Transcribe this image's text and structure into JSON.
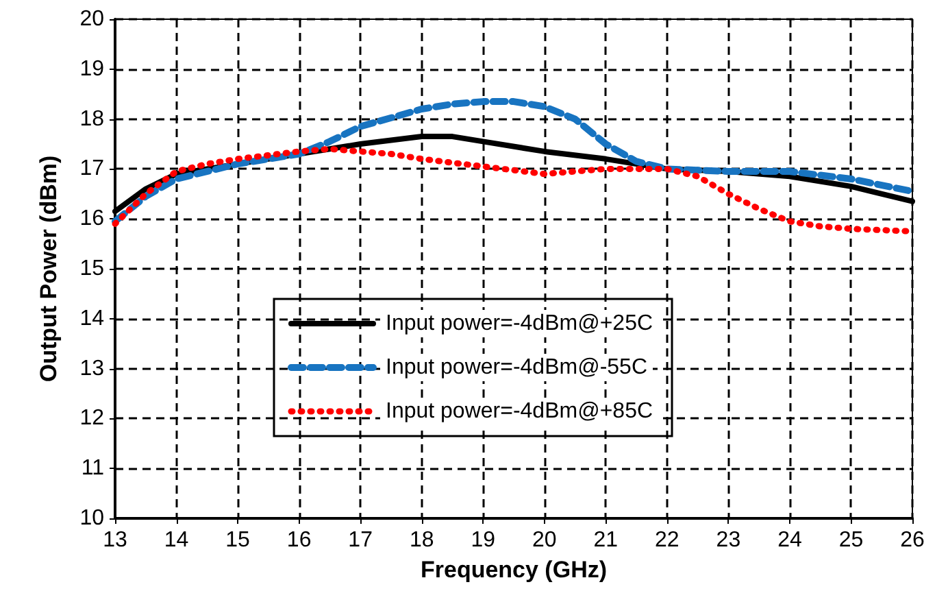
{
  "chart_data": {
    "type": "line",
    "xlabel": "Frequency (GHz)",
    "ylabel": "Output Power (dBm)",
    "xlim": [
      13,
      26
    ],
    "xticks": [
      13,
      14,
      15,
      16,
      17,
      18,
      19,
      20,
      21,
      22,
      23,
      24,
      25,
      26
    ],
    "ylim": [
      10,
      20
    ],
    "yticks": [
      10,
      11,
      12,
      13,
      14,
      15,
      16,
      17,
      18,
      19,
      20
    ],
    "grid": true,
    "legend": "bottom",
    "marker": "none",
    "series": [
      {
        "name": "Input power=-4dBm@+25C",
        "color": "#000000",
        "line_style": "solid",
        "x": [
          13,
          13.5,
          14,
          15,
          16,
          17,
          18,
          18.5,
          19,
          20,
          21,
          22,
          23,
          24,
          25,
          26
        ],
        "values": [
          16.15,
          16.6,
          16.9,
          17.1,
          17.3,
          17.5,
          17.65,
          17.65,
          17.55,
          17.35,
          17.2,
          17.0,
          16.95,
          16.85,
          16.65,
          16.35
        ]
      },
      {
        "name": "Input power=-4dBm@-55C",
        "color": "#1874c1",
        "line_style": "dashed",
        "x": [
          13,
          13.5,
          14,
          15,
          16,
          16.5,
          17,
          18,
          18.5,
          19,
          19.5,
          20,
          20.5,
          21,
          21.5,
          22,
          23,
          24,
          25,
          26
        ],
        "values": [
          15.95,
          16.45,
          16.8,
          17.1,
          17.3,
          17.55,
          17.85,
          18.2,
          18.3,
          18.35,
          18.35,
          18.25,
          18.0,
          17.5,
          17.15,
          17.0,
          16.95,
          16.95,
          16.8,
          16.55
        ]
      },
      {
        "name": "Input power=-4dBm@+85C",
        "color": "#ff0000",
        "line_style": "dotted",
        "x": [
          13,
          13.5,
          14,
          14.5,
          15,
          16,
          16.5,
          17,
          17.5,
          18,
          19,
          20,
          21,
          22,
          22.5,
          23,
          23.5,
          24,
          24.5,
          25,
          26
        ],
        "values": [
          15.9,
          16.5,
          16.95,
          17.1,
          17.2,
          17.35,
          17.4,
          17.35,
          17.3,
          17.2,
          17.05,
          16.9,
          17.0,
          17.0,
          16.85,
          16.5,
          16.2,
          15.95,
          15.85,
          15.8,
          15.75
        ]
      }
    ]
  }
}
